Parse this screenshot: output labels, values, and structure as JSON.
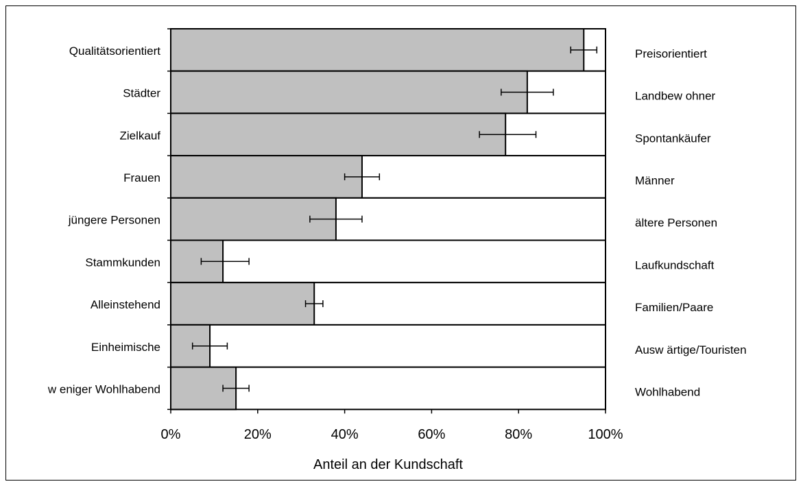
{
  "chart_data": {
    "type": "bar",
    "orientation": "horizontal",
    "stacked": true,
    "xlabel": "Anteil an der Kundschaft",
    "xlim": [
      0,
      100
    ],
    "xticks": [
      "0%",
      "20%",
      "40%",
      "60%",
      "80%",
      "100%"
    ],
    "grid": false,
    "legend": "none",
    "colors": {
      "left": "#c0c0c0",
      "right": "#ffffff",
      "border": "#000000"
    },
    "categories_left": [
      "Qualitätsorientiert",
      "Städter",
      "Zielkauf",
      "Frauen",
      "jüngere Personen",
      "Stammkunden",
      "Alleinstehend",
      "Einheimische",
      "w eniger Wohlhabend"
    ],
    "categories_right": [
      "Preisorientiert",
      "Landbew ohner",
      "Spontankäufer",
      "Männer",
      "ältere Personen",
      "Laufkundschaft",
      "Familien/Paare",
      "Ausw ärtige/Touristen",
      "Wohlhabend"
    ],
    "values": [
      95,
      82,
      77,
      44,
      38,
      12,
      33,
      9,
      15
    ],
    "error_low": [
      92,
      76,
      71,
      40,
      32,
      7,
      31,
      5,
      12
    ],
    "error_high": [
      98,
      88,
      84,
      48,
      44,
      18,
      35,
      13,
      18
    ]
  }
}
